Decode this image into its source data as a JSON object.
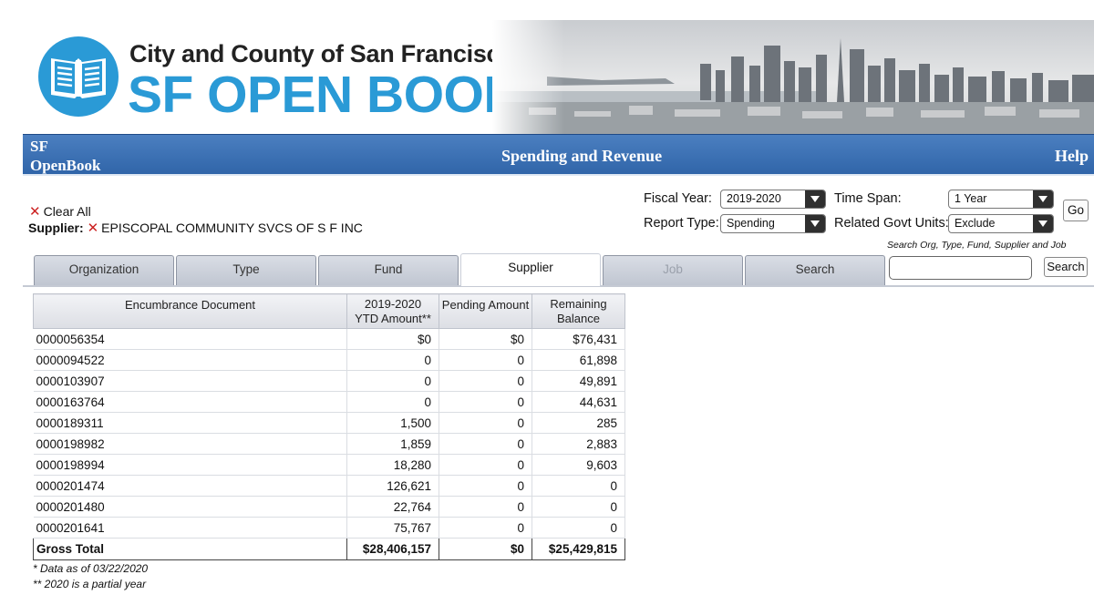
{
  "header": {
    "city_line": "City and County of San Francisco",
    "brand_title": "SF OPEN BOOK"
  },
  "navbar": {
    "brand_line1": "SF",
    "brand_line2": "OpenBook",
    "center_title": "Spending and Revenue",
    "help_label": "Help"
  },
  "filters": {
    "clear_all_label": "Clear All",
    "supplier_label": "Supplier:",
    "supplier_value": "EPISCOPAL COMMUNITY SVCS OF S F INC",
    "fiscal_year_label": "Fiscal Year:",
    "fiscal_year_value": "2019-2020",
    "time_span_label": "Time Span:",
    "time_span_value": "1 Year",
    "report_type_label": "Report Type:",
    "report_type_value": "Spending",
    "related_units_label": "Related Govt Units:",
    "related_units_value": "Exclude",
    "go_label": "Go"
  },
  "search": {
    "hint": "Search Org, Type, Fund, Supplier and Job",
    "value": "",
    "button_label": "Search"
  },
  "tabs": [
    {
      "label": "Organization",
      "state": "normal"
    },
    {
      "label": "Type",
      "state": "normal"
    },
    {
      "label": "Fund",
      "state": "normal"
    },
    {
      "label": "Supplier",
      "state": "active"
    },
    {
      "label": "Job",
      "state": "disabled"
    },
    {
      "label": "Search",
      "state": "normal"
    }
  ],
  "table": {
    "headers": {
      "doc": "Encumbrance Document",
      "ytd_line1": "2019-2020",
      "ytd_line2": "YTD Amount**",
      "pending": "Pending Amount",
      "remaining_line1": "Remaining",
      "remaining_line2": "Balance"
    },
    "rows": [
      {
        "doc": "0000056354",
        "ytd": "$0",
        "pending": "$0",
        "remaining": "$76,431"
      },
      {
        "doc": "0000094522",
        "ytd": "0",
        "pending": "0",
        "remaining": "61,898"
      },
      {
        "doc": "0000103907",
        "ytd": "0",
        "pending": "0",
        "remaining": "49,891"
      },
      {
        "doc": "0000163764",
        "ytd": "0",
        "pending": "0",
        "remaining": "44,631"
      },
      {
        "doc": "0000189311",
        "ytd": "1,500",
        "pending": "0",
        "remaining": "285"
      },
      {
        "doc": "0000198982",
        "ytd": "1,859",
        "pending": "0",
        "remaining": "2,883"
      },
      {
        "doc": "0000198994",
        "ytd": "18,280",
        "pending": "0",
        "remaining": "9,603"
      },
      {
        "doc": "0000201474",
        "ytd": "126,621",
        "pending": "0",
        "remaining": "0"
      },
      {
        "doc": "0000201480",
        "ytd": "22,764",
        "pending": "0",
        "remaining": "0"
      },
      {
        "doc": "0000201641",
        "ytd": "75,767",
        "pending": "0",
        "remaining": "0"
      }
    ],
    "total": {
      "label": "Gross Total",
      "ytd": "$28,406,157",
      "pending": "$0",
      "remaining": "$25,429,815"
    }
  },
  "footnotes": {
    "data_as_of": "* Data as of 03/22/2020",
    "partial_year": "** 2020 is a partial year"
  },
  "colors": {
    "brand_blue": "#2a9ad6",
    "navbar_blue": "#3a6fb3",
    "clear_x_red": "#cc2222"
  }
}
